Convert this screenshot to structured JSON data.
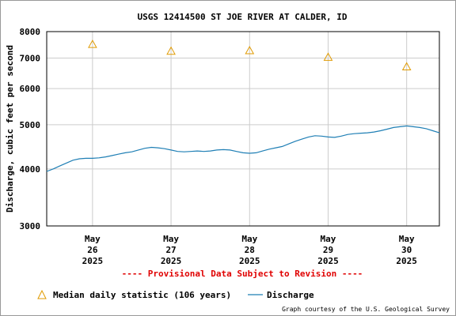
{
  "chart_data": {
    "type": "line",
    "title": "USGS 12414500 ST JOE RIVER AT CALDER, ID",
    "ylabel": "Discharge, cubic feet per second",
    "xlabel": "",
    "y_scale": "log",
    "ylim": [
      3000,
      8000
    ],
    "y_ticks": [
      "8000",
      "7000",
      "6000",
      "5000",
      "4000",
      "3000"
    ],
    "x_range": [
      "2025-05-25T10:00",
      "2025-05-30T10:00"
    ],
    "x_ticks": [
      {
        "month": "May",
        "day": "26",
        "year": "2025"
      },
      {
        "month": "May",
        "day": "27",
        "year": "2025"
      },
      {
        "month": "May",
        "day": "28",
        "year": "2025"
      },
      {
        "month": "May",
        "day": "29",
        "year": "2025"
      },
      {
        "month": "May",
        "day": "30",
        "year": "2025"
      }
    ],
    "grid": true,
    "colors": {
      "discharge": "#1f7fb5",
      "median": "#e09a00",
      "provisional": "#e00000",
      "grid": "#cccccc"
    },
    "series": [
      {
        "name": "Median daily statistic (106 years)",
        "type": "scatter",
        "marker": "triangle",
        "x": [
          "2025-05-26T00:00",
          "2025-05-27T00:00",
          "2025-05-28T00:00",
          "2025-05-29T00:00",
          "2025-05-30T00:00"
        ],
        "y": [
          7500,
          7250,
          7270,
          7030,
          6700
        ]
      },
      {
        "name": "Discharge",
        "type": "line",
        "x": [
          "2025-05-25T10:00",
          "2025-05-25T12:00",
          "2025-05-25T14:00",
          "2025-05-25T16:00",
          "2025-05-25T18:00",
          "2025-05-25T20:00",
          "2025-05-25T22:00",
          "2025-05-26T00:00",
          "2025-05-26T02:00",
          "2025-05-26T04:00",
          "2025-05-26T06:00",
          "2025-05-26T08:00",
          "2025-05-26T10:00",
          "2025-05-26T12:00",
          "2025-05-26T14:00",
          "2025-05-26T16:00",
          "2025-05-26T18:00",
          "2025-05-26T20:00",
          "2025-05-26T22:00",
          "2025-05-27T00:00",
          "2025-05-27T02:00",
          "2025-05-27T04:00",
          "2025-05-27T06:00",
          "2025-05-27T08:00",
          "2025-05-27T10:00",
          "2025-05-27T12:00",
          "2025-05-27T14:00",
          "2025-05-27T16:00",
          "2025-05-27T18:00",
          "2025-05-27T20:00",
          "2025-05-27T22:00",
          "2025-05-28T00:00",
          "2025-05-28T02:00",
          "2025-05-28T04:00",
          "2025-05-28T06:00",
          "2025-05-28T08:00",
          "2025-05-28T10:00",
          "2025-05-28T12:00",
          "2025-05-28T14:00",
          "2025-05-28T16:00",
          "2025-05-28T18:00",
          "2025-05-28T20:00",
          "2025-05-28T22:00",
          "2025-05-29T00:00",
          "2025-05-29T02:00",
          "2025-05-29T04:00",
          "2025-05-29T06:00",
          "2025-05-29T08:00",
          "2025-05-29T10:00",
          "2025-05-29T12:00",
          "2025-05-29T14:00",
          "2025-05-29T16:00",
          "2025-05-29T18:00",
          "2025-05-29T20:00",
          "2025-05-29T22:00",
          "2025-05-30T00:00",
          "2025-05-30T02:00",
          "2025-05-30T04:00",
          "2025-05-30T06:00",
          "2025-05-30T08:00",
          "2025-05-30T10:00"
        ],
        "y": [
          3950,
          4000,
          4060,
          4120,
          4180,
          4210,
          4220,
          4220,
          4230,
          4250,
          4280,
          4310,
          4340,
          4360,
          4400,
          4440,
          4460,
          4450,
          4430,
          4400,
          4370,
          4360,
          4370,
          4380,
          4370,
          4380,
          4400,
          4410,
          4400,
          4370,
          4340,
          4330,
          4340,
          4380,
          4420,
          4450,
          4480,
          4540,
          4600,
          4650,
          4700,
          4730,
          4720,
          4700,
          4690,
          4720,
          4760,
          4780,
          4790,
          4800,
          4820,
          4850,
          4890,
          4930,
          4950,
          4970,
          4950,
          4930,
          4900,
          4850,
          4800
        ]
      }
    ]
  },
  "annotations": {
    "provisional": "---- Provisional Data Subject to Revision ----",
    "credit": "Graph courtesy of the U.S. Geological Survey"
  },
  "legend": {
    "placement": "bottom",
    "median_label": "Median daily statistic (106 years)",
    "discharge_label": "Discharge"
  }
}
